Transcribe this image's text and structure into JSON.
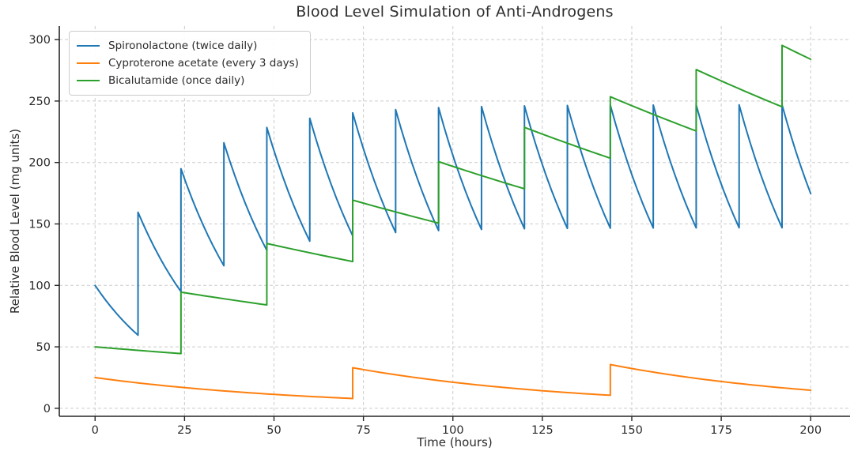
{
  "title": "Blood Level Simulation of Anti-Androgens",
  "chart_data": {
    "type": "line",
    "title": "Blood Level Simulation of Anti-Androgens",
    "xlabel": "Time (hours)",
    "ylabel": "Relative Blood Level (mg units)",
    "xlim": [
      -10,
      211
    ],
    "ylim": [
      -6.5,
      311
    ],
    "x_ticks": [
      0,
      25,
      50,
      75,
      100,
      125,
      150,
      175,
      200
    ],
    "y_ticks": [
      0,
      50,
      100,
      150,
      200,
      250,
      300
    ],
    "grid": {
      "visible": true,
      "style": "dashed",
      "color": "#cccccc"
    },
    "axis_color": "#262626",
    "tick_label_color": "#2b2b2b",
    "legend_position": "upper-left",
    "series": [
      {
        "name": "Spironolactone (twice daily)",
        "color": "#1f77b4",
        "dose_interval_hours": 12,
        "decay": "exponential",
        "points": [
          [
            0,
            100
          ],
          [
            12,
            59.5
          ],
          [
            12,
            159.5
          ],
          [
            24,
            94.9
          ],
          [
            24,
            194.9
          ],
          [
            36,
            116.0
          ],
          [
            36,
            216.0
          ],
          [
            48,
            128.5
          ],
          [
            48,
            228.5
          ],
          [
            60,
            136.0
          ],
          [
            60,
            236.0
          ],
          [
            72,
            140.4
          ],
          [
            72,
            240.4
          ],
          [
            84,
            143.0
          ],
          [
            84,
            243.0
          ],
          [
            96,
            144.6
          ],
          [
            96,
            244.6
          ],
          [
            108,
            145.5
          ],
          [
            108,
            245.5
          ],
          [
            120,
            146.1
          ],
          [
            120,
            246.1
          ],
          [
            132,
            146.4
          ],
          [
            132,
            246.4
          ],
          [
            144,
            146.6
          ],
          [
            144,
            246.6
          ],
          [
            156,
            146.7
          ],
          [
            156,
            246.7
          ],
          [
            168,
            146.8
          ],
          [
            168,
            246.8
          ],
          [
            180,
            146.9
          ],
          [
            180,
            246.9
          ],
          [
            192,
            146.9
          ],
          [
            192,
            246.9
          ],
          [
            200,
            174.7
          ]
        ]
      },
      {
        "name": "Cyproterone acetate (every 3 days)",
        "color": "#ff7f0e",
        "dose_interval_hours": 72,
        "decay": "exponential",
        "points": [
          [
            0,
            25
          ],
          [
            72,
            8.0
          ],
          [
            72,
            33.0
          ],
          [
            144,
            10.6
          ],
          [
            144,
            35.6
          ],
          [
            200,
            14.7
          ]
        ]
      },
      {
        "name": "Bicalutamide (once daily)",
        "color": "#2ca02c",
        "dose_interval_hours": 24,
        "decay": "exponential",
        "points": [
          [
            0,
            50
          ],
          [
            24,
            44.5
          ],
          [
            24,
            94.5
          ],
          [
            48,
            84.1
          ],
          [
            48,
            134.1
          ],
          [
            72,
            119.4
          ],
          [
            72,
            169.4
          ],
          [
            96,
            150.7
          ],
          [
            96,
            200.7
          ],
          [
            120,
            178.6
          ],
          [
            120,
            228.6
          ],
          [
            144,
            203.5
          ],
          [
            144,
            253.5
          ],
          [
            168,
            225.6
          ],
          [
            168,
            275.6
          ],
          [
            192,
            245.3
          ],
          [
            192,
            295.3
          ],
          [
            200,
            284.0
          ]
        ]
      }
    ]
  }
}
